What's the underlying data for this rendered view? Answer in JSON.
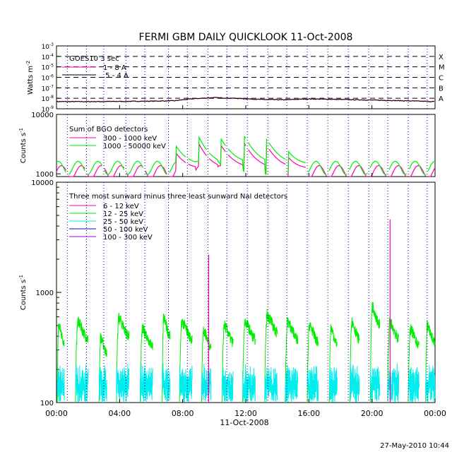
{
  "title": "FERMI GBM DAILY QUICKLOOK   11-Oct-2008",
  "timestamp": "27-May-2010 10:44",
  "x_axis": {
    "label": "11-Oct-2008",
    "ticks": [
      "00:00",
      "04:00",
      "08:00",
      "12:00",
      "16:00",
      "20:00",
      "00:00"
    ],
    "range_hours": [
      0,
      24
    ]
  },
  "colors": {
    "axes": "#000000",
    "orbit_lines": "#0000aa",
    "magenta": "#ff00aa",
    "green": "#00ee00",
    "cyan": "#00eeee",
    "blue": "#0000ff",
    "purple": "#aa00cc"
  },
  "orbit_dividers_hours": [
    0.7,
    1.9,
    3.0,
    4.4,
    5.6,
    7.1,
    8.3,
    9.6,
    10.8,
    12.1,
    13.4,
    14.6,
    15.9,
    17.2,
    18.5,
    19.8,
    21.0,
    22.3,
    23.5
  ],
  "chart_data": [
    {
      "type": "line",
      "panel": "goes",
      "ylabel": "Watts m",
      "ylabel_exp": "-2",
      "yscale": "log",
      "ylim": [
        1e-09,
        0.001
      ],
      "y_ticks": [
        {
          "base": "10",
          "exp": "-3",
          "value": 0.001
        },
        {
          "base": "10",
          "exp": "-4",
          "value": 0.0001
        },
        {
          "base": "10",
          "exp": "-5",
          "value": 1e-05
        },
        {
          "base": "10",
          "exp": "-6",
          "value": 1e-06
        },
        {
          "base": "10",
          "exp": "-7",
          "value": 1e-07
        },
        {
          "base": "10",
          "exp": "-8",
          "value": 1e-08
        },
        {
          "base": "10",
          "exp": "-9",
          "value": 1e-09
        }
      ],
      "flare_classes": [
        {
          "label": "X",
          "value": 0.0001
        },
        {
          "label": "M",
          "value": 1e-05
        },
        {
          "label": "C",
          "value": 1e-06
        },
        {
          "label": "B",
          "value": 1e-07
        },
        {
          "label": "A",
          "value": 1e-08
        }
      ],
      "legend_title": "GOES10 3 sec",
      "legend": [
        "1 - 8 A",
        ".5 - 4 A"
      ],
      "series": [
        {
          "name": "1 - 8 A",
          "x": [
            0,
            2,
            4,
            6,
            7.5,
            8.5,
            10,
            11.5,
            13,
            14.5,
            16,
            18,
            20,
            22,
            24
          ],
          "y": [
            5e-09,
            5e-09,
            5.2e-09,
            5.5e-09,
            6e-09,
            9e-09,
            1.2e-08,
            1e-08,
            8e-09,
            7.5e-09,
            9e-09,
            8e-09,
            7e-09,
            6e-09,
            5e-09
          ]
        }
      ]
    },
    {
      "type": "line",
      "panel": "bgo",
      "ylabel": "Counts s",
      "ylabel_exp": "-1",
      "yscale": "log",
      "ylim": [
        900,
        10000
      ],
      "y_ticks": [
        {
          "label": "10000",
          "value": 10000
        },
        {
          "label": "1000",
          "value": 1000
        }
      ],
      "legend_title": "Sum of BGO detectors",
      "legend": [
        "300 - 1000 keV",
        "1000 - 50000 keV"
      ],
      "series": [
        {
          "name": "300 - 1000 keV",
          "base": 1100,
          "peak_segments_hours": [
            [
              7.6,
              8.8
            ],
            [
              9.0,
              10.2
            ],
            [
              10.4,
              11.8
            ],
            [
              11.9,
              13.2
            ],
            [
              13.3,
              14.6
            ],
            [
              14.7,
              15.8
            ]
          ],
          "peak_levels": [
            2200,
            3300,
            3100,
            3300,
            3100,
            1900
          ]
        },
        {
          "name": "1000 - 50000 keV",
          "base": 1300,
          "peak_segments_hours": [
            [
              7.6,
              8.8
            ],
            [
              9.0,
              10.2
            ],
            [
              10.4,
              11.8
            ],
            [
              11.9,
              13.2
            ],
            [
              13.3,
              14.6
            ],
            [
              14.7,
              15.8
            ]
          ],
          "peak_levels": [
            2900,
            4300,
            4000,
            4400,
            4000,
            2400
          ]
        }
      ]
    },
    {
      "type": "line",
      "panel": "nai",
      "ylabel": "Counts s",
      "ylabel_exp": "-1",
      "yscale": "log",
      "ylim": [
        100,
        10000
      ],
      "y_ticks": [
        {
          "label": "10000",
          "value": 10000
        },
        {
          "label": "1000",
          "value": 1000
        },
        {
          "label": "100",
          "value": 100
        }
      ],
      "legend_title": "Three most sunward minus three least sunward NaI detectors",
      "legend": [
        "6 - 12 keV",
        "12 - 25 keV",
        "25 - 50 keV",
        "50 - 100 keV",
        "100 - 300 keV"
      ],
      "series": [
        {
          "name": "12 - 25 keV",
          "bursts_hours": [
            [
              0.05,
              0.5
            ],
            [
              1.2,
              2.0
            ],
            [
              2.7,
              3.2
            ],
            [
              3.8,
              4.6
            ],
            [
              5.3,
              6.1
            ],
            [
              6.7,
              7.2
            ],
            [
              7.8,
              8.6
            ],
            [
              9.2,
              9.8
            ],
            [
              10.5,
              11.2
            ],
            [
              11.8,
              12.6
            ],
            [
              13.2,
              14.0
            ],
            [
              14.5,
              15.3
            ],
            [
              15.9,
              16.6
            ],
            [
              17.3,
              17.8
            ],
            [
              18.6,
              19.2
            ],
            [
              19.9,
              20.5
            ],
            [
              21.0,
              21.7
            ],
            [
              22.3,
              23.0
            ],
            [
              23.4,
              24.0
            ]
          ],
          "peak_levels": [
            520,
            560,
            400,
            600,
            480,
            600,
            560,
            470,
            520,
            560,
            650,
            560,
            520,
            490,
            560,
            780,
            560,
            480,
            520
          ]
        },
        {
          "name": "25 - 50 keV",
          "level_range": [
            100,
            250
          ]
        },
        {
          "name": "6 - 12 keV",
          "spikes": [
            {
              "x": 9.65,
              "y": 2200
            },
            {
              "x": 21.15,
              "y": 4600
            }
          ]
        }
      ]
    }
  ]
}
